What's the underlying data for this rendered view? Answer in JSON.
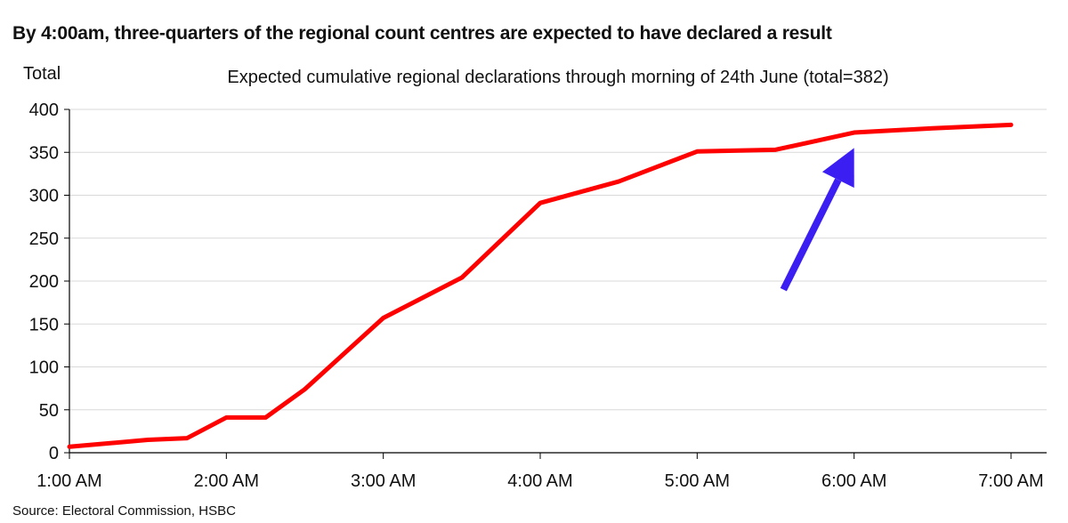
{
  "page": {
    "headline": "By 4:00am, three-quarters of the regional count centres are expected to have declared a result",
    "source": "Source: Electoral Commission, HSBC"
  },
  "colors": {
    "line": "#ff0000",
    "arrow": "#3b1ff2",
    "grid": "#d9d9d9",
    "axis": "#000000"
  },
  "chart_data": {
    "type": "line",
    "title": "Expected cumulative regional declarations through morning of 24th June (total=382)",
    "ylabel": "Total",
    "xlabel": "",
    "ylim": [
      0,
      400
    ],
    "yticks": [
      0,
      50,
      100,
      150,
      200,
      250,
      300,
      350,
      400
    ],
    "xlim": [
      1,
      7
    ],
    "xticks": [
      {
        "value": 1,
        "label": "1:00 AM"
      },
      {
        "value": 2,
        "label": "2:00 AM"
      },
      {
        "value": 3,
        "label": "3:00 AM"
      },
      {
        "value": 4,
        "label": "4:00 AM"
      },
      {
        "value": 5,
        "label": "5:00 AM"
      },
      {
        "value": 6,
        "label": "6:00 AM"
      },
      {
        "value": 7,
        "label": "7:00 AM"
      }
    ],
    "grid": true,
    "series": [
      {
        "x": [
          1.0,
          1.5,
          1.75,
          2.0,
          2.25,
          2.5,
          3.0,
          3.5,
          4.0,
          4.5,
          5.0,
          5.5,
          6.0,
          6.5,
          7.0
        ],
        "values": [
          7,
          15,
          17,
          41,
          41,
          74,
          157,
          204,
          291,
          316,
          351,
          353,
          373,
          378,
          382
        ]
      }
    ],
    "annotations": [
      {
        "type": "arrow",
        "from": [
          5.55,
          190
        ],
        "to": [
          6.0,
          355
        ]
      }
    ]
  }
}
